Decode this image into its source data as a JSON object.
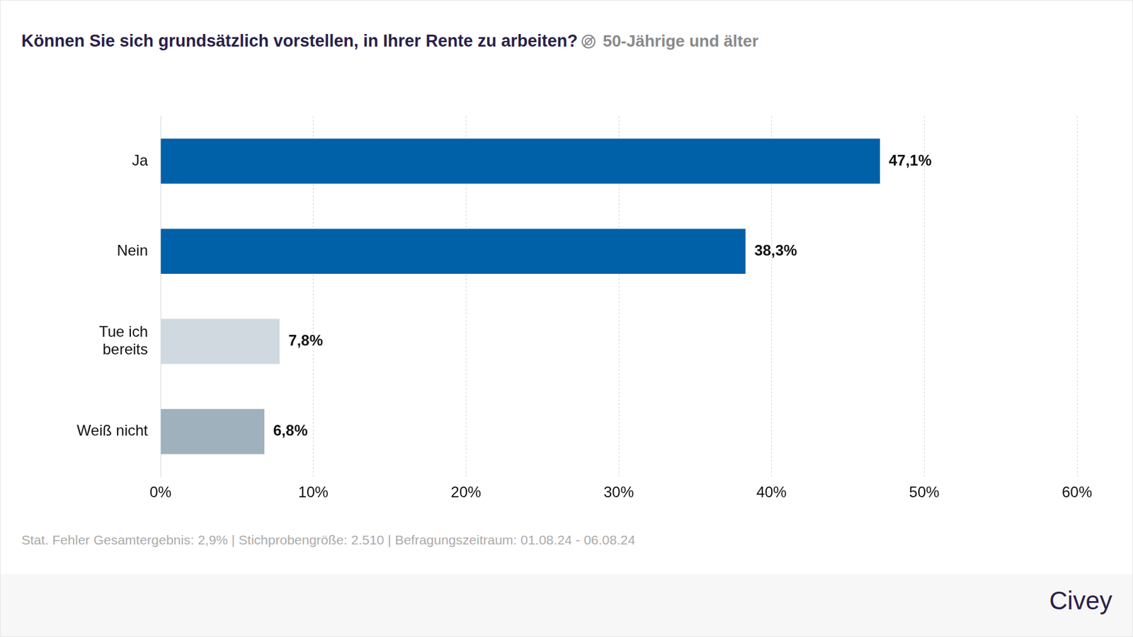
{
  "chart_data": {
    "type": "bar",
    "orientation": "horizontal",
    "title": "Können Sie sich grundsätzlich vorstellen, in Ihrer Rente zu arbeiten?",
    "subtitle": "50-Jährige und älter",
    "categories": [
      "Ja",
      "Nein",
      "Tue ich bereits",
      "Weiß nicht"
    ],
    "values": [
      47.1,
      38.3,
      7.8,
      6.8
    ],
    "value_labels": [
      "47,1%",
      "38,3%",
      "7,8%",
      "6,8%"
    ],
    "colors": [
      "#0060a8",
      "#0060a8",
      "#d0d9e0",
      "#a0b1be"
    ],
    "data_labels": true,
    "xlim": [
      0,
      60
    ],
    "xticks": [
      {
        "value": 0,
        "label": "0%"
      },
      {
        "value": 10,
        "label": "10%"
      },
      {
        "value": 20,
        "label": "20%"
      },
      {
        "value": 30,
        "label": "30%"
      },
      {
        "value": 40,
        "label": "40%"
      },
      {
        "value": 50,
        "label": "50%"
      },
      {
        "value": 60,
        "label": "60%"
      }
    ],
    "grid": true,
    "annotations": [
      "Stat. Fehler Gesamtergebnis: 2,9% | Stichprobengröße: 2.510 | Befragungszeitraum: 01.08.24 - 06.08.24",
      "Civey"
    ]
  }
}
